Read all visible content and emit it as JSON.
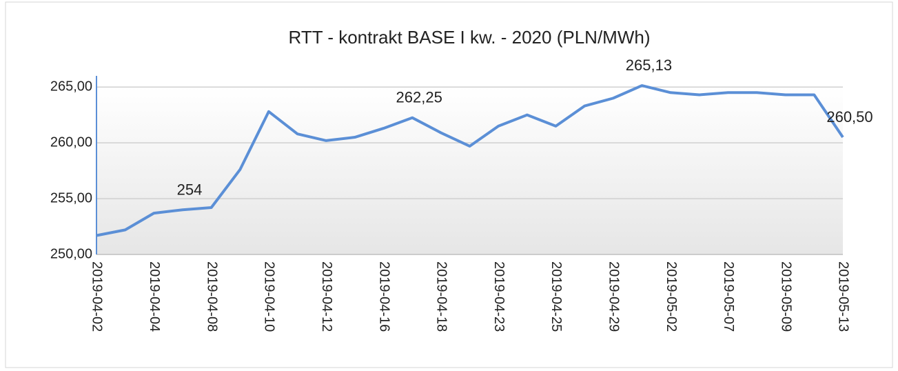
{
  "chart_data": {
    "type": "line",
    "title": "RTT - kontrakt BASE I kw. - 2020 (PLN/MWh)",
    "categories": [
      "2019-04-02",
      null,
      "2019-04-04",
      null,
      "2019-04-08",
      null,
      "2019-04-10",
      null,
      "2019-04-12",
      null,
      "2019-04-16",
      null,
      "2019-04-18",
      null,
      "2019-04-23",
      null,
      "2019-04-25",
      null,
      "2019-04-29",
      null,
      "2019-05-02",
      null,
      "2019-05-07",
      null,
      "2019-05-09",
      null,
      "2019-05-13"
    ],
    "series": [
      {
        "color": "#5b8fd6",
        "values": [
          251.7,
          252.2,
          253.7,
          254,
          254.2,
          257.6,
          262.8,
          260.8,
          260.2,
          260.5,
          261.3,
          262.25,
          260.9,
          259.7,
          261.5,
          262.5,
          261.5,
          263.3,
          264.0,
          265.13,
          264.5,
          264.3,
          264.5,
          264.5,
          264.3,
          264.3,
          260.5
        ],
        "value_labels": [
          null,
          null,
          null,
          "254",
          null,
          null,
          null,
          null,
          null,
          null,
          null,
          "262,25",
          null,
          null,
          null,
          null,
          null,
          null,
          null,
          "265,13",
          null,
          null,
          null,
          null,
          null,
          null,
          "260,50"
        ]
      }
    ],
    "ylim": [
      250,
      266
    ],
    "yticks": [
      {
        "value": 250,
        "label": "250,00"
      },
      {
        "value": 255,
        "label": "255,00"
      },
      {
        "value": 260,
        "label": "260,00"
      },
      {
        "value": 265,
        "label": "265,00"
      }
    ],
    "grid": true
  }
}
